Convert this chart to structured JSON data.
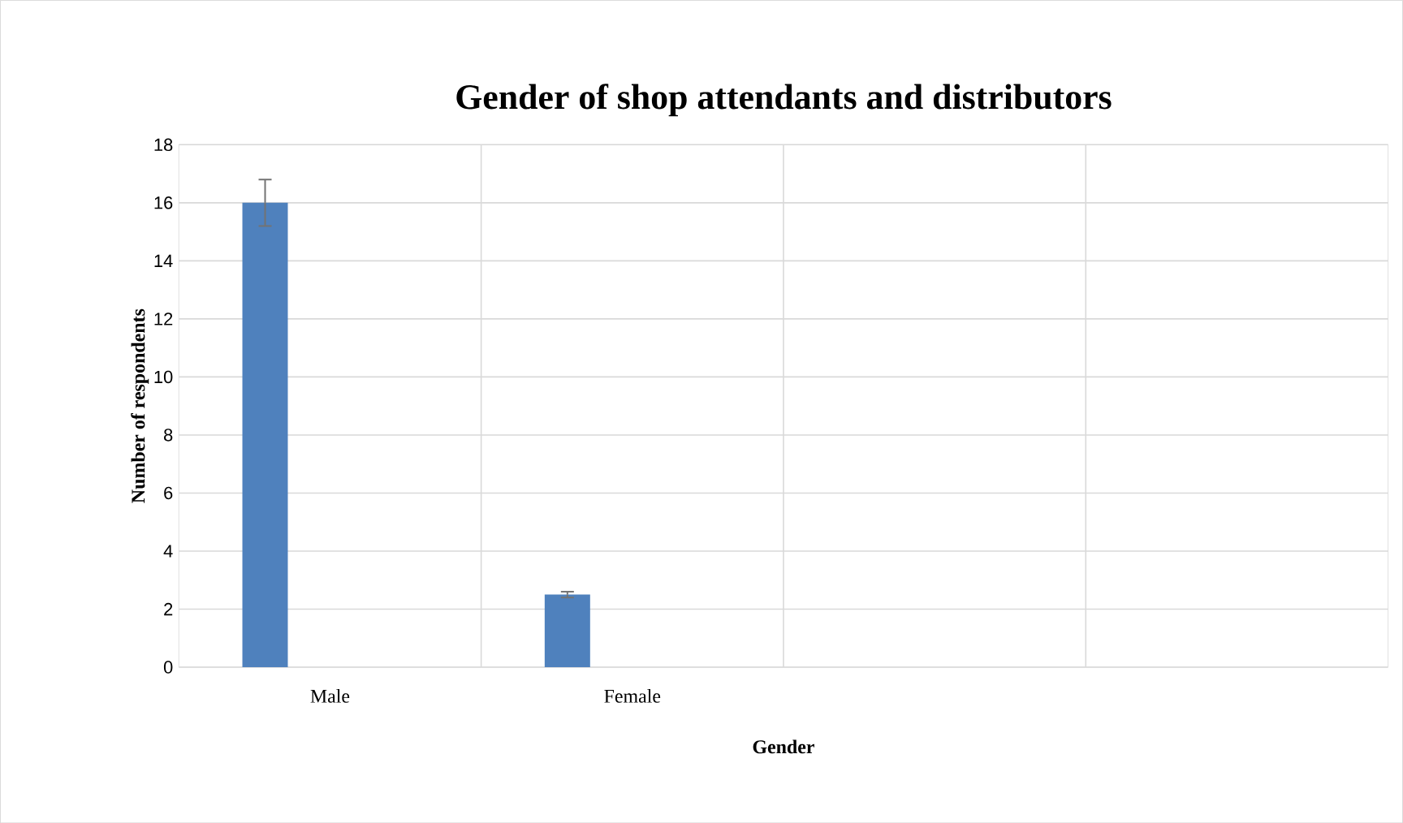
{
  "chart_data": {
    "type": "bar",
    "title": "Gender of shop attendants and distributors",
    "xlabel": "Gender",
    "ylabel": "Number of respondents",
    "categories": [
      "Male",
      "Female",
      null,
      null
    ],
    "values": [
      16,
      2.5,
      null,
      null
    ],
    "errors": [
      0.8,
      0.1,
      null,
      null
    ],
    "color": "#4f81bd",
    "ylim": [
      0,
      18
    ],
    "yticks": [
      0,
      2,
      4,
      6,
      8,
      10,
      12,
      14,
      16,
      18
    ],
    "grid": true
  }
}
